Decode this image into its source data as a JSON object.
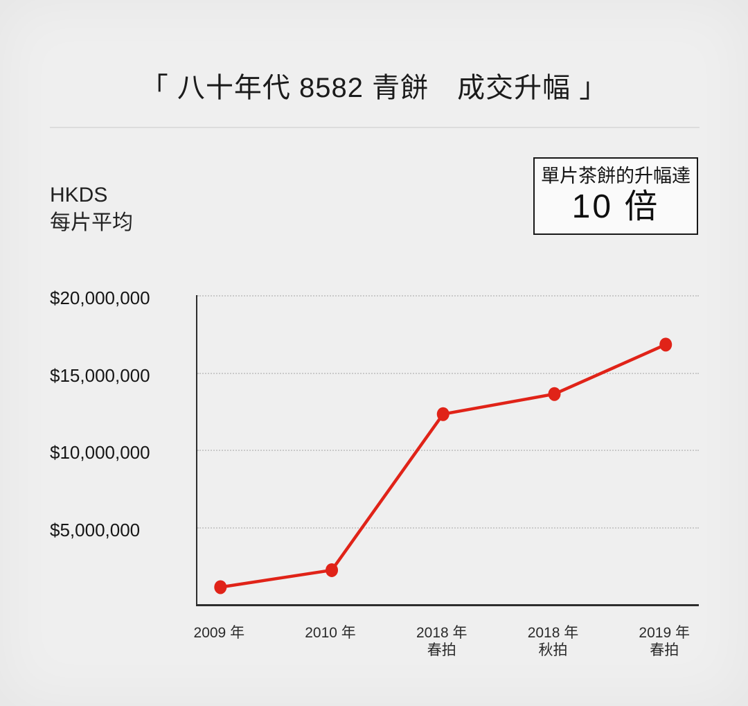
{
  "page": {
    "title": "「 八十年代 8582 青餅　成交升幅 」"
  },
  "axis_unit": {
    "line1": "HKDS",
    "line2": "每片平均"
  },
  "callout": {
    "label": "單片茶餅的升幅達",
    "value": "10 倍"
  },
  "colors": {
    "line": "#e02318",
    "background": "#efefef",
    "axis": "#2d2d2d",
    "grid": "#c9c9c9"
  },
  "chart_data": {
    "type": "line",
    "title": "八十年代 8582 青餅 成交升幅",
    "ylabel": "HKDS 每片平均",
    "categories": [
      [
        "2009 年"
      ],
      [
        "2010 年"
      ],
      [
        "2018 年",
        "春拍"
      ],
      [
        "2018 年",
        "秋拍"
      ],
      [
        "2019 年",
        "春拍"
      ]
    ],
    "values": [
      1100000,
      2200000,
      12300000,
      13600000,
      16800000
    ],
    "ylim": [
      0,
      20000000
    ],
    "yticks": [
      {
        "value": 5000000,
        "label": "$5,000,000"
      },
      {
        "value": 10000000,
        "label": "$10,000,000"
      },
      {
        "value": 15000000,
        "label": "$15,000,000"
      },
      {
        "value": 20000000,
        "label": "$20,000,000"
      }
    ],
    "line_color": "#e02318",
    "marker": "circle",
    "grid": "horizontal-dotted",
    "legend": false,
    "annotation": "單片茶餅的升幅達 10 倍"
  }
}
